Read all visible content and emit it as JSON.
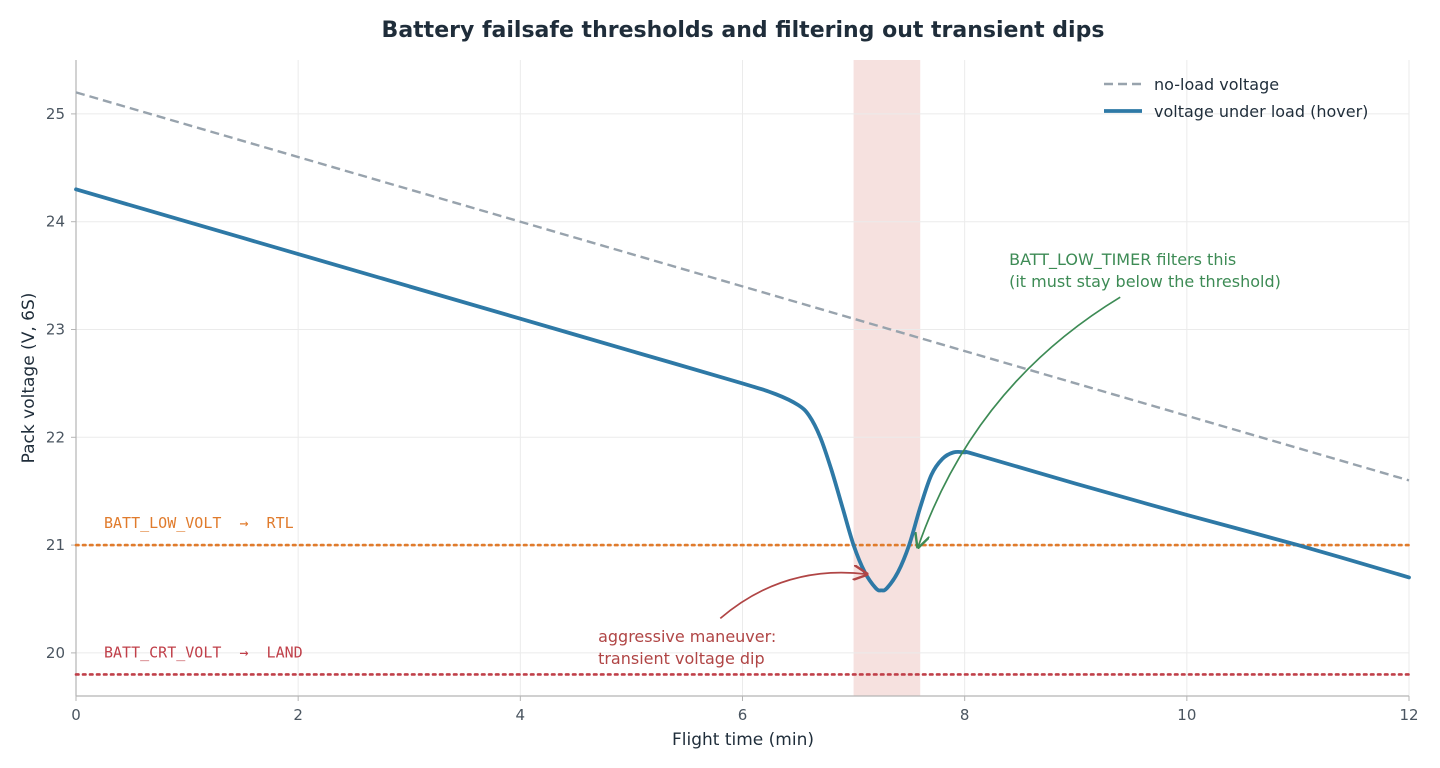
{
  "chart_data": {
    "type": "line",
    "title": "Battery failsafe thresholds and filtering out transient dips",
    "xlabel": "Flight time (min)",
    "ylabel": "Pack voltage (V, 6S)",
    "xlim": [
      0,
      12
    ],
    "ylim": [
      19.6,
      25.5
    ],
    "xticks": [
      0,
      2,
      4,
      6,
      8,
      10,
      12
    ],
    "yticks": [
      20,
      21,
      22,
      23,
      24,
      25
    ],
    "grid": true,
    "legend_placement": "top-right",
    "series": [
      {
        "name": "no-load voltage",
        "style": "dashed",
        "color": "#98a3ad",
        "x": [
          0,
          12
        ],
        "y": [
          25.2,
          21.6
        ]
      },
      {
        "name": "voltage under load (hover)",
        "style": "solid",
        "color": "#2e79a6",
        "x": [
          0,
          1,
          2,
          3,
          4,
          5,
          6,
          6.3,
          6.5,
          6.6,
          6.7,
          6.8,
          6.9,
          7.0,
          7.1,
          7.2,
          7.25,
          7.3,
          7.4,
          7.5,
          7.6,
          7.7,
          7.8,
          7.9,
          8.0,
          8.1,
          9,
          10,
          11,
          12
        ],
        "y": [
          24.3,
          24.0,
          23.7,
          23.4,
          23.1,
          22.8,
          22.5,
          22.4,
          22.3,
          22.2,
          22.0,
          21.7,
          21.35,
          21.0,
          20.75,
          20.6,
          20.58,
          20.6,
          20.75,
          21.0,
          21.35,
          21.65,
          21.8,
          21.86,
          21.86,
          21.84,
          21.57,
          21.28,
          21.0,
          20.7
        ]
      }
    ],
    "thresholds": [
      {
        "label": "BATT_LOW_VOLT  →  RTL",
        "value": 21.0,
        "color": "#e07b2c"
      },
      {
        "label": "BATT_CRT_VOLT  →  LAND",
        "value": 19.8,
        "color": "#c0404a"
      }
    ],
    "highlight_band": {
      "x0": 7.0,
      "x1": 7.6,
      "color": "#f6e1df"
    },
    "annotations": [
      {
        "lines": [
          "aggressive maneuver:",
          "transient voltage dip"
        ],
        "color": "#b04545",
        "text_at": [
          4.7,
          20.1
        ],
        "arrow_from": [
          5.8,
          20.32
        ],
        "arrow_to": [
          7.12,
          20.73
        ]
      },
      {
        "lines": [
          "BATT_LOW_TIMER filters this",
          "(it must stay below the threshold)"
        ],
        "color": "#3d8b55",
        "text_at": [
          8.4,
          23.6
        ],
        "arrow_from": [
          9.4,
          23.3
        ],
        "arrow_to": [
          7.58,
          20.98
        ]
      }
    ]
  }
}
